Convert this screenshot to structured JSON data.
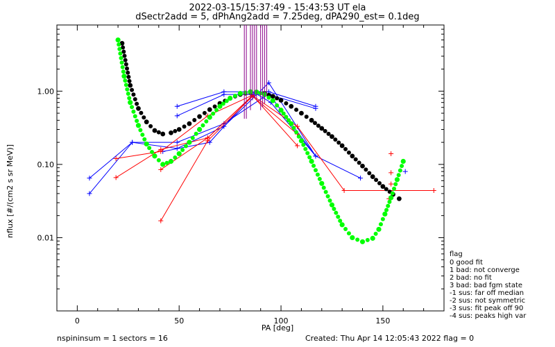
{
  "title_line1": "2022-03-15/15:37:49 - 15:43:53 UT ela",
  "title_line2": "dSectr2add = 5, dPhAng2add = 7.25deg, dPA290_est=   0.1deg",
  "footer_left": "nspininsum =  1  sectors = 16",
  "footer_right": "Created: Thu Apr 14 12:05:43 2022   flag = 0",
  "legend": {
    "title": "flag",
    "items": [
      " 0 good fit",
      " 1 bad: not converge",
      " 2 bad: no fit",
      " 3 bad: bad fgm state",
      "-1 sus: far off median",
      "-2 sus: not symmetric",
      "-3 sus: fit peak off 90",
      "-4 sus: peaks high var"
    ]
  },
  "colors": {
    "blue": "#0000ff",
    "red": "#ff0000",
    "green": "#00ff00",
    "black": "#000000",
    "purple": "#8b008b"
  },
  "chart_data": {
    "type": "scatter",
    "xlabel": "PA [deg]",
    "ylabel": "nflux [#/(cm2 s sr MeV)]",
    "xlim": [
      -10,
      180
    ],
    "ylim": [
      0.001,
      8
    ],
    "yscale": "log",
    "x_ticks": [
      0,
      50,
      100,
      150
    ],
    "y_ticks": [
      0.01,
      0.1,
      1.0
    ],
    "y_tick_labels": [
      "0.01",
      "0.10",
      "1.00"
    ],
    "series": [
      {
        "color": "blue",
        "style": "line+cross",
        "x": [
          6,
          27,
          49,
          72,
          94,
          117
        ],
        "y": [
          0.04,
          0.2,
          0.165,
          0.33,
          1.3,
          0.13
        ]
      },
      {
        "color": "blue",
        "style": "line+cross",
        "x": [
          6,
          27,
          49,
          72,
          94,
          117
        ],
        "y": [
          0.065,
          0.2,
          0.2,
          0.36,
          0.92,
          0.13
        ]
      },
      {
        "color": "blue",
        "style": "line+cross",
        "x": [
          49,
          72,
          94,
          117
        ],
        "y": [
          0.62,
          0.98,
          0.98,
          0.62
        ]
      },
      {
        "color": "blue",
        "style": "line+cross",
        "x": [
          49,
          72,
          94,
          117
        ],
        "y": [
          0.46,
          0.9,
          0.9,
          0.58
        ]
      },
      {
        "color": "blue",
        "style": "line+cross",
        "x": [
          42,
          65,
          87,
          95,
          117,
          139
        ],
        "y": [
          0.15,
          0.2,
          0.95,
          0.7,
          0.13,
          0.065
        ]
      },
      {
        "color": "blue",
        "style": "line+cross",
        "x": [
          161
        ],
        "y": [
          0.08
        ]
      },
      {
        "color": "red",
        "style": "line+cross",
        "x": [
          19,
          41,
          64,
          86,
          108,
          131,
          175
        ],
        "y": [
          0.066,
          0.16,
          0.23,
          0.87,
          0.33,
          0.044,
          0.044
        ]
      },
      {
        "color": "red",
        "style": "line+cross",
        "x": [
          41,
          64,
          86,
          108
        ],
        "y": [
          0.085,
          0.23,
          0.87,
          0.18
        ]
      },
      {
        "color": "red",
        "style": "line+cross",
        "x": [
          41,
          64,
          86,
          108
        ],
        "y": [
          0.017,
          0.21,
          0.85,
          0.26
        ]
      },
      {
        "color": "red",
        "style": "line+cross",
        "x": [
          19,
          41,
          64,
          86
        ],
        "y": [
          0.12,
          0.15,
          0.46,
          0.88
        ]
      },
      {
        "color": "red",
        "style": "cross",
        "x": [
          154,
          154,
          154,
          153
        ],
        "y": [
          0.14,
          0.077,
          0.054,
          0.034
        ]
      },
      {
        "color": "black",
        "style": "dots",
        "x": [
          22,
          26,
          30,
          34,
          38,
          42,
          46,
          50,
          55,
          60,
          65,
          70,
          75,
          80,
          85,
          88,
          92,
          96,
          100,
          105,
          110,
          115,
          120,
          125,
          130,
          135,
          140,
          145,
          150,
          155,
          158
        ],
        "y": [
          4.5,
          1.2,
          0.58,
          0.38,
          0.29,
          0.26,
          0.27,
          0.3,
          0.36,
          0.45,
          0.56,
          0.68,
          0.8,
          0.9,
          0.96,
          0.97,
          0.93,
          0.85,
          0.75,
          0.62,
          0.5,
          0.4,
          0.31,
          0.24,
          0.18,
          0.13,
          0.095,
          0.068,
          0.05,
          0.039,
          0.034
        ]
      },
      {
        "color": "green",
        "style": "dots",
        "x": [
          20,
          23,
          26,
          30,
          34,
          38,
          42,
          46,
          50,
          55,
          60,
          65,
          70,
          75,
          80,
          85,
          88,
          92,
          96,
          100,
          105,
          110,
          115,
          120,
          125,
          130,
          135,
          140,
          145,
          148,
          151,
          154,
          157,
          160
        ],
        "y": [
          5.0,
          1.6,
          0.7,
          0.34,
          0.19,
          0.13,
          0.1,
          0.11,
          0.14,
          0.2,
          0.3,
          0.44,
          0.62,
          0.8,
          0.93,
          0.98,
          0.97,
          0.9,
          0.74,
          0.55,
          0.36,
          0.21,
          0.11,
          0.055,
          0.028,
          0.015,
          0.01,
          0.0088,
          0.0098,
          0.013,
          0.021,
          0.035,
          0.062,
          0.11
        ]
      },
      {
        "color": "purple",
        "style": "vlines",
        "x": [
          82,
          83,
          85,
          86,
          87,
          88,
          90,
          91,
          92,
          93
        ],
        "y_top": [
          8,
          8,
          8,
          8,
          8,
          8,
          8,
          8,
          8,
          8
        ],
        "y_bottom": [
          0.42,
          0.42,
          0.55,
          0.75,
          0.8,
          0.75,
          0.55,
          0.6,
          0.68,
          0.85
        ]
      }
    ]
  }
}
